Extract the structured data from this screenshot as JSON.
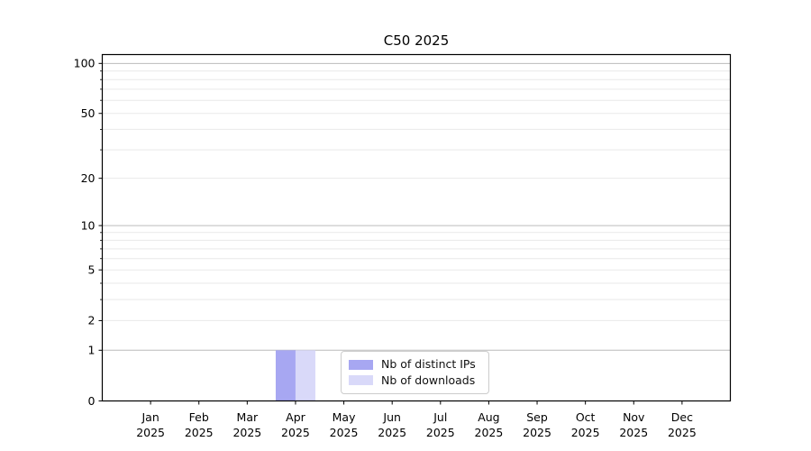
{
  "chart_data": {
    "type": "bar",
    "title": "C50 2025",
    "categories": [
      "Jan",
      "Feb",
      "Mar",
      "Apr",
      "May",
      "Jun",
      "Jul",
      "Aug",
      "Sep",
      "Oct",
      "Nov",
      "Dec"
    ],
    "year_label": "2025",
    "series": [
      {
        "name": "Nb of distinct IPs",
        "color": "#a7a7f2",
        "values": [
          0,
          0,
          0,
          1,
          0,
          0,
          0,
          0,
          0,
          0,
          0,
          0
        ]
      },
      {
        "name": "Nb of downloads",
        "color": "#d9d9f9",
        "values": [
          0,
          0,
          0,
          1,
          0,
          0,
          0,
          0,
          0,
          0,
          0,
          0
        ]
      }
    ],
    "yscale": "log1p",
    "ylim": [
      0,
      113
    ],
    "yticks": [
      0,
      1,
      2,
      5,
      10,
      20,
      50,
      100
    ],
    "yticks_major_grid": [
      1,
      10,
      100
    ],
    "yticks_minor": [
      2,
      3,
      4,
      5,
      6,
      7,
      8,
      9,
      20,
      30,
      40,
      50,
      60,
      70,
      80,
      90
    ],
    "grid": {
      "major_color": "#bcbcbc",
      "minor_color": "#e9e9e9"
    },
    "legend_position": "lower center, inside plot",
    "axis_color": "#000000",
    "background": "#ffffff"
  }
}
